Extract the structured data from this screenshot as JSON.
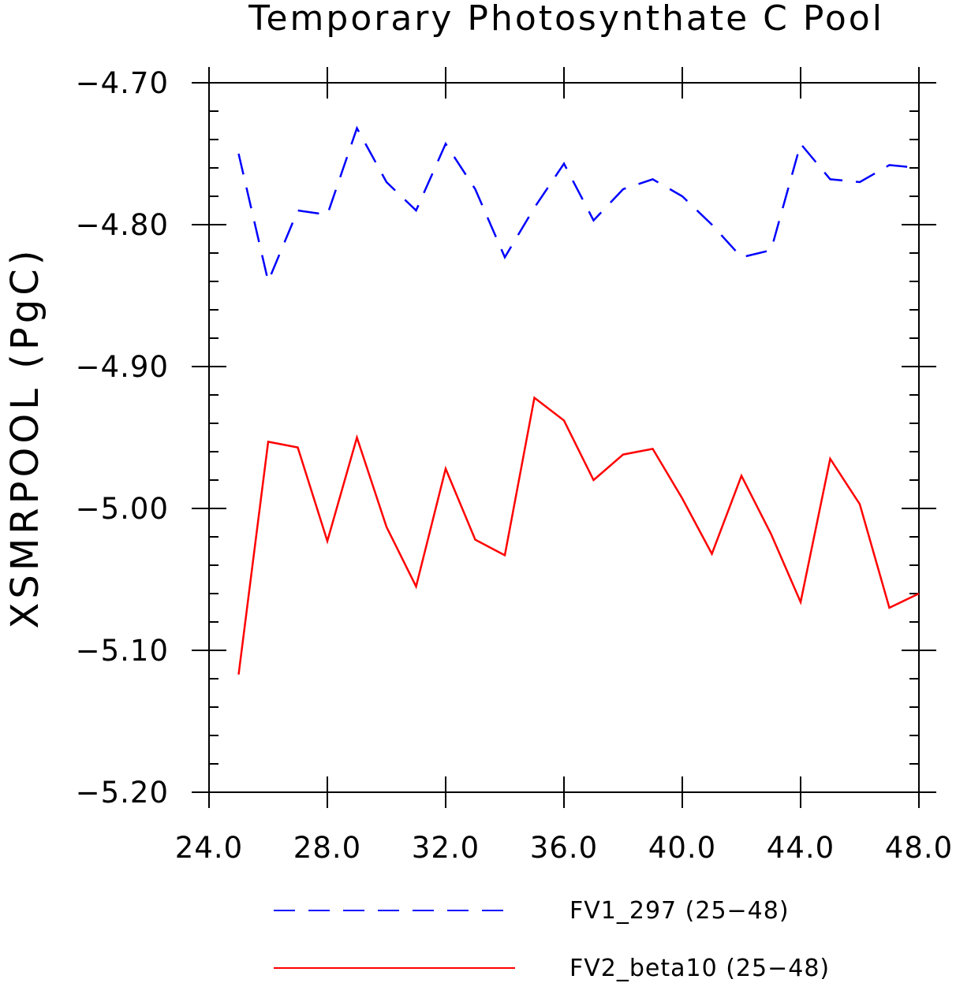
{
  "chart_data": {
    "type": "line",
    "title": "Temporary Photosynthate C Pool",
    "xlabel": "",
    "ylabel": "XSMRPOOL   (PgC)",
    "xlim": [
      24.0,
      48.0
    ],
    "ylim": [
      -5.2,
      -4.7
    ],
    "xticks": [
      "24.0",
      "28.0",
      "32.0",
      "36.0",
      "40.0",
      "44.0",
      "48.0"
    ],
    "yticks": [
      "−4.70",
      "−4.80",
      "−4.90",
      "−5.00",
      "−5.10",
      "−5.20"
    ],
    "x": [
      25,
      26,
      27,
      28,
      29,
      30,
      31,
      32,
      33,
      34,
      35,
      36,
      37,
      38,
      39,
      40,
      41,
      42,
      43,
      44,
      45,
      46,
      47,
      48
    ],
    "series": [
      {
        "name": "FV1_297 (25−48)",
        "color": "#0000ff",
        "dash": "dashed",
        "values": [
          -4.75,
          -4.84,
          -4.79,
          -4.793,
          -4.732,
          -4.77,
          -4.79,
          -4.743,
          -4.775,
          -4.823,
          -4.788,
          -4.757,
          -4.797,
          -4.775,
          -4.768,
          -4.78,
          -4.8,
          -4.823,
          -4.818,
          -4.743,
          -4.768,
          -4.77,
          -4.758,
          -4.76
        ]
      },
      {
        "name": "FV2_beta10 (25−48)",
        "color": "#ff0000",
        "dash": "solid",
        "values": [
          -5.117,
          -4.953,
          -4.957,
          -5.023,
          -4.95,
          -5.013,
          -5.055,
          -4.972,
          -5.022,
          -5.033,
          -4.922,
          -4.938,
          -4.98,
          -4.962,
          -4.958,
          -4.993,
          -5.032,
          -4.977,
          -5.018,
          -5.066,
          -4.965,
          -4.997,
          -5.07,
          -5.06
        ]
      }
    ],
    "grid": false,
    "legend": "bottom"
  }
}
